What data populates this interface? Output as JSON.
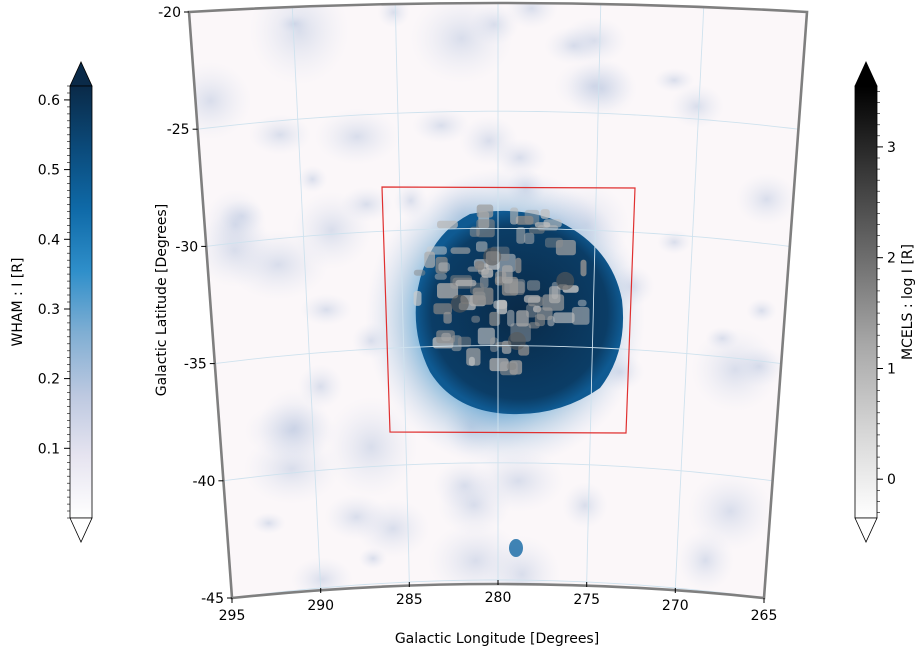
{
  "chart_data": [
    {
      "type": "heatmap",
      "subtype": "sky-map",
      "xlabel": "Galactic Longitude [Degrees]",
      "ylabel": "Galactic Latitude [Degrees]",
      "xlim": [
        295,
        265
      ],
      "ylim": [
        -45,
        -20
      ],
      "x_ticks": [
        "295",
        "290",
        "285",
        "280",
        "275",
        "270",
        "265"
      ],
      "y_ticks": [
        "-20",
        "-25",
        "-30",
        "-35",
        "-40",
        "-45"
      ],
      "grid": true,
      "layers": [
        {
          "name": "WHAM",
          "colormap": "white-to-dark-blue"
        },
        {
          "name": "MCELS",
          "colormap": "white-to-black",
          "scale": "log"
        }
      ],
      "blob": {
        "center": [
          279.7,
          -32.5
        ],
        "radius_deg": 4.6
      },
      "small_source": {
        "l": 279.5,
        "b": -42.5
      },
      "region_box": {
        "l_range": [
          287.0,
          272.5
        ],
        "b_range": [
          -27.5,
          -38.5
        ],
        "color": "#e03030"
      }
    },
    {
      "type": "colorbar",
      "label": "WHAM : I [R]",
      "ticks": [
        "0.1",
        "0.2",
        "0.3",
        "0.4",
        "0.5",
        "0.6"
      ],
      "tick_values": [
        0.1,
        0.2,
        0.3,
        0.4,
        0.5,
        0.6
      ],
      "range": [
        0.0,
        0.62
      ],
      "extend": "both",
      "colors": [
        "#ffffff",
        "#e6e4f0",
        "#bcc8e0",
        "#7faed3",
        "#2f8fca",
        "#0f6aa8",
        "#0b4a7a",
        "#0a2a48"
      ]
    },
    {
      "type": "colorbar",
      "label": "MCELS : log I [R]",
      "ticks": [
        "0",
        "1",
        "2",
        "3"
      ],
      "tick_values": [
        0,
        1,
        2,
        3
      ],
      "range": [
        -0.35,
        3.55
      ],
      "extend": "both",
      "colors": [
        "#ffffff",
        "#d6d6d6",
        "#a8a8a8",
        "#6e6e6e",
        "#383838",
        "#000000"
      ]
    }
  ]
}
